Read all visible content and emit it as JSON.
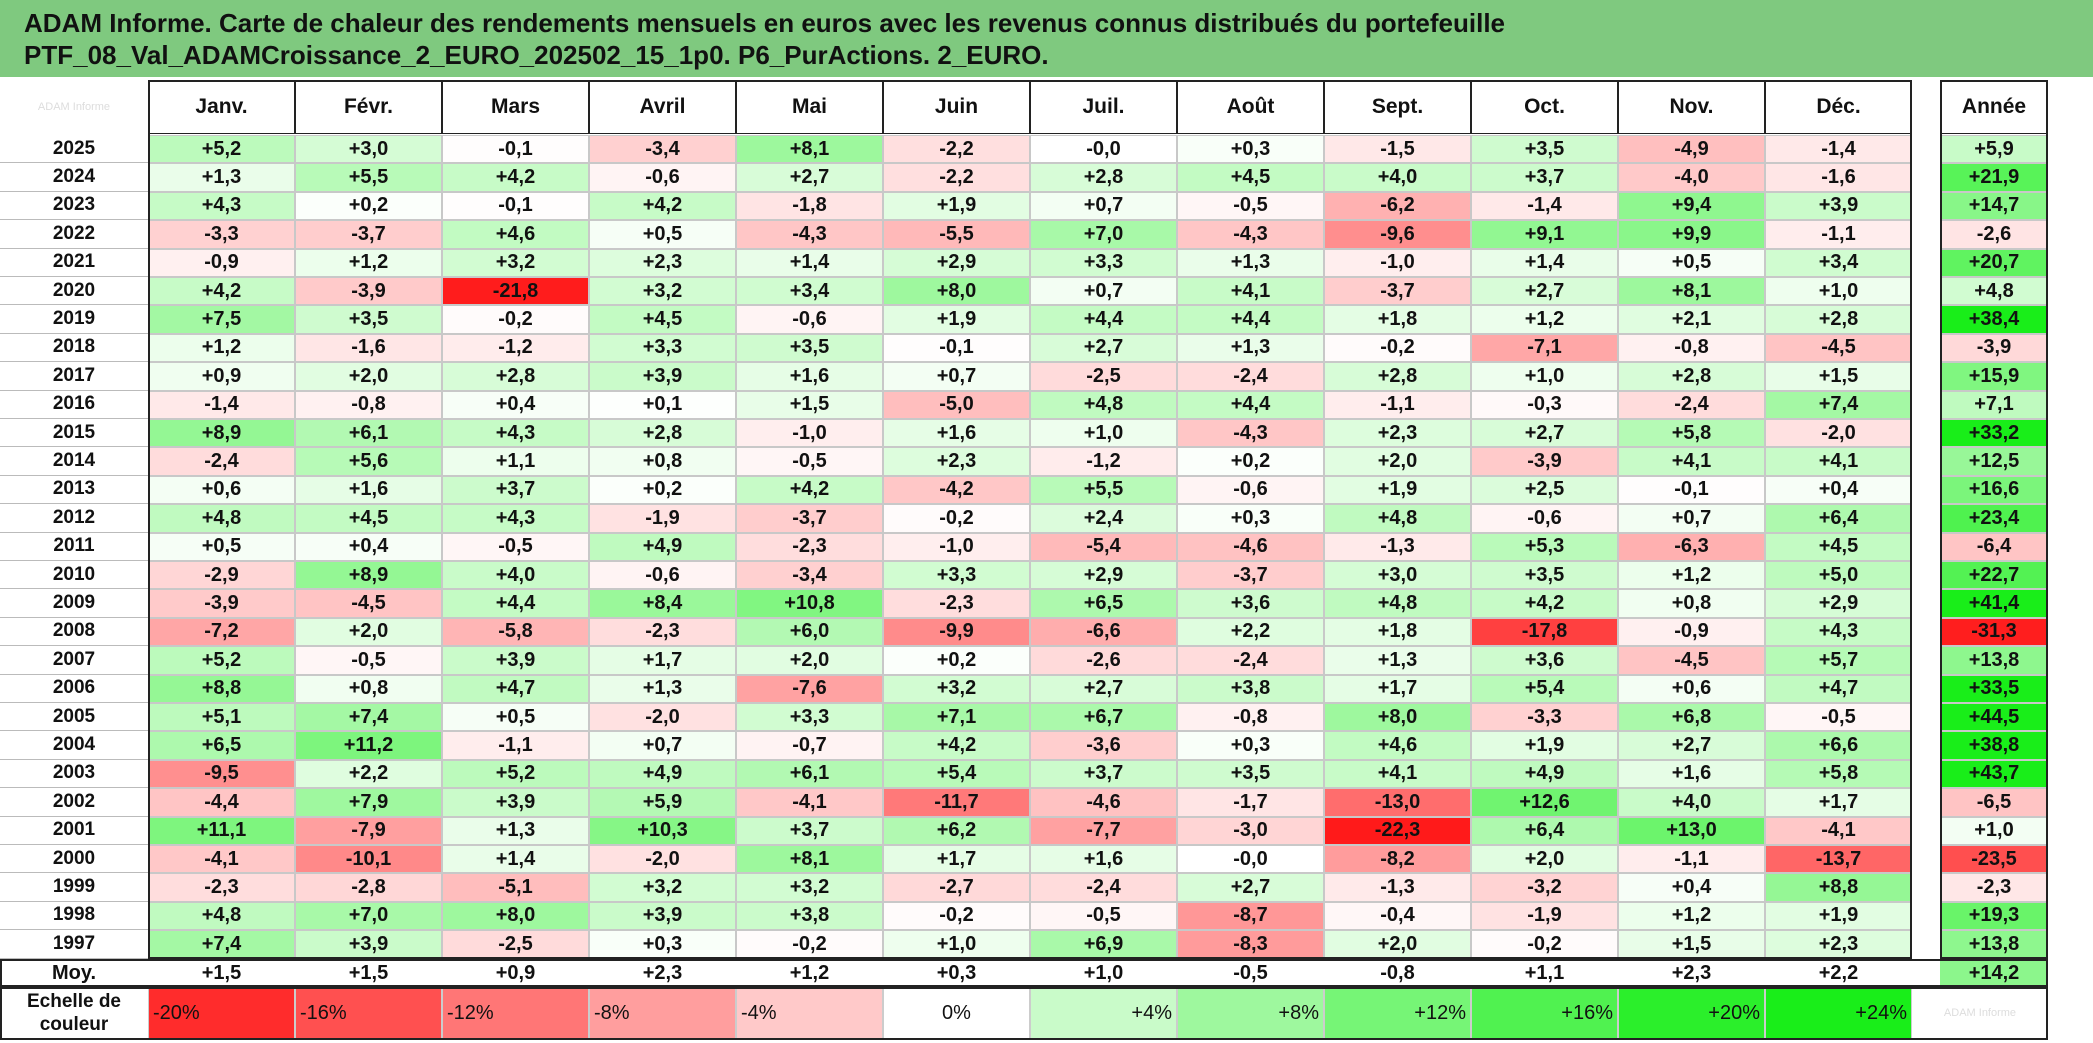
{
  "title": {
    "line1": "ADAM Informe. Carte de chaleur des rendements mensuels en euros avec les revenus connus distribués du portefeuille",
    "line2": "PTF_08_Val_ADAMCroissance_2_EURO_202502_15_1p0. P6_PurActions. 2_EURO."
  },
  "corner_label": "ADAM Informe",
  "months": [
    "Janv.",
    "Févr.",
    "Mars",
    "Avril",
    "Mai",
    "Juin",
    "Juil.",
    "Août",
    "Sept.",
    "Oct.",
    "Nov.",
    "Déc."
  ],
  "year_header": "Année",
  "average_label": "Moy.",
  "legend_label": "Echelle de couleur",
  "legend_steps": [
    "-20%",
    "-16%",
    "-12%",
    "-8%",
    "-4%",
    "0%",
    "+4%",
    "+8%",
    "+12%",
    "+16%",
    "+20%",
    "+24%"
  ],
  "legend_steps_values": [
    -20,
    -16,
    -12,
    -8,
    -4,
    0,
    4,
    8,
    12,
    16,
    20,
    24
  ],
  "legend_trailing_label": "ADAM Informe",
  "colors": {
    "title_bg": "#7fc97f",
    "max_red": "#ff1a1a",
    "max_green": "#19ee19",
    "neutral": "#ffffff"
  },
  "chart_data": {
    "type": "heatmap",
    "title": "Carte de chaleur des rendements mensuels en euros",
    "columns": [
      "Janv.",
      "Févr.",
      "Mars",
      "Avril",
      "Mai",
      "Juin",
      "Juil.",
      "Août",
      "Sept.",
      "Oct.",
      "Nov.",
      "Déc."
    ],
    "rows": [
      {
        "year": "2025",
        "values": [
          "+5,2",
          "+3,0",
          "-0,1",
          "-3,4",
          "+8,1",
          "-2,2",
          "-0,0",
          "+0,3",
          "-1,5",
          "+3,5",
          "-4,9",
          "-1,4"
        ],
        "annual": "+5,9"
      },
      {
        "year": "2024",
        "values": [
          "+1,3",
          "+5,5",
          "+4,2",
          "-0,6",
          "+2,7",
          "-2,2",
          "+2,8",
          "+4,5",
          "+4,0",
          "+3,7",
          "-4,0",
          "-1,6"
        ],
        "annual": "+21,9"
      },
      {
        "year": "2023",
        "values": [
          "+4,3",
          "+0,2",
          "-0,1",
          "+4,2",
          "-1,8",
          "+1,9",
          "+0,7",
          "-0,5",
          "-6,2",
          "-1,4",
          "+9,4",
          "+3,9"
        ],
        "annual": "+14,7"
      },
      {
        "year": "2022",
        "values": [
          "-3,3",
          "-3,7",
          "+4,6",
          "+0,5",
          "-4,3",
          "-5,5",
          "+7,0",
          "-4,3",
          "-9,6",
          "+9,1",
          "+9,9",
          "-1,1"
        ],
        "annual": "-2,6"
      },
      {
        "year": "2021",
        "values": [
          "-0,9",
          "+1,2",
          "+3,2",
          "+2,3",
          "+1,4",
          "+2,9",
          "+3,3",
          "+1,3",
          "-1,0",
          "+1,4",
          "+0,5",
          "+3,4"
        ],
        "annual": "+20,7"
      },
      {
        "year": "2020",
        "values": [
          "+4,2",
          "-3,9",
          "-21,8",
          "+3,2",
          "+3,4",
          "+8,0",
          "+0,7",
          "+4,1",
          "-3,7",
          "+2,7",
          "+8,1",
          "+1,0"
        ],
        "annual": "+4,8"
      },
      {
        "year": "2019",
        "values": [
          "+7,5",
          "+3,5",
          "-0,2",
          "+4,5",
          "-0,6",
          "+1,9",
          "+4,4",
          "+4,4",
          "+1,8",
          "+1,2",
          "+2,1",
          "+2,8"
        ],
        "annual": "+38,4"
      },
      {
        "year": "2018",
        "values": [
          "+1,2",
          "-1,6",
          "-1,2",
          "+3,3",
          "+3,5",
          "-0,1",
          "+2,7",
          "+1,3",
          "-0,2",
          "-7,1",
          "-0,8",
          "-4,5"
        ],
        "annual": "-3,9"
      },
      {
        "year": "2017",
        "values": [
          "+0,9",
          "+2,0",
          "+2,8",
          "+3,9",
          "+1,6",
          "+0,7",
          "-2,5",
          "-2,4",
          "+2,8",
          "+1,0",
          "+2,8",
          "+1,5"
        ],
        "annual": "+15,9"
      },
      {
        "year": "2016",
        "values": [
          "-1,4",
          "-0,8",
          "+0,4",
          "+0,1",
          "+1,5",
          "-5,0",
          "+4,8",
          "+4,4",
          "-1,1",
          "-0,3",
          "-2,4",
          "+7,4"
        ],
        "annual": "+7,1"
      },
      {
        "year": "2015",
        "values": [
          "+8,9",
          "+6,1",
          "+4,3",
          "+2,8",
          "-1,0",
          "+1,6",
          "+1,0",
          "-4,3",
          "+2,3",
          "+2,7",
          "+5,8",
          "-2,0"
        ],
        "annual": "+33,2"
      },
      {
        "year": "2014",
        "values": [
          "-2,4",
          "+5,6",
          "+1,1",
          "+0,8",
          "-0,5",
          "+2,3",
          "-1,2",
          "+0,2",
          "+2,0",
          "-3,9",
          "+4,1",
          "+4,1"
        ],
        "annual": "+12,5"
      },
      {
        "year": "2013",
        "values": [
          "+0,6",
          "+1,6",
          "+3,7",
          "+0,2",
          "+4,2",
          "-4,2",
          "+5,5",
          "-0,6",
          "+1,9",
          "+2,5",
          "-0,1",
          "+0,4"
        ],
        "annual": "+16,6"
      },
      {
        "year": "2012",
        "values": [
          "+4,8",
          "+4,5",
          "+4,3",
          "-1,9",
          "-3,7",
          "-0,2",
          "+2,4",
          "+0,3",
          "+4,8",
          "-0,6",
          "+0,7",
          "+6,4"
        ],
        "annual": "+23,4"
      },
      {
        "year": "2011",
        "values": [
          "+0,5",
          "+0,4",
          "-0,5",
          "+4,9",
          "-2,3",
          "-1,0",
          "-5,4",
          "-4,6",
          "-1,3",
          "+5,3",
          "-6,3",
          "+4,5"
        ],
        "annual": "-6,4"
      },
      {
        "year": "2010",
        "values": [
          "-2,9",
          "+8,9",
          "+4,0",
          "-0,6",
          "-3,4",
          "+3,3",
          "+2,9",
          "-3,7",
          "+3,0",
          "+3,5",
          "+1,2",
          "+5,0"
        ],
        "annual": "+22,7"
      },
      {
        "year": "2009",
        "values": [
          "-3,9",
          "-4,5",
          "+4,4",
          "+8,4",
          "+10,8",
          "-2,3",
          "+6,5",
          "+3,6",
          "+4,8",
          "+4,2",
          "+0,8",
          "+2,9"
        ],
        "annual": "+41,4"
      },
      {
        "year": "2008",
        "values": [
          "-7,2",
          "+2,0",
          "-5,8",
          "-2,3",
          "+6,0",
          "-9,9",
          "-6,6",
          "+2,2",
          "+1,8",
          "-17,8",
          "-0,9",
          "+4,3"
        ],
        "annual": "-31,3"
      },
      {
        "year": "2007",
        "values": [
          "+5,2",
          "-0,5",
          "+3,9",
          "+1,7",
          "+2,0",
          "+0,2",
          "-2,6",
          "-2,4",
          "+1,3",
          "+3,6",
          "-4,5",
          "+5,7"
        ],
        "annual": "+13,8"
      },
      {
        "year": "2006",
        "values": [
          "+8,8",
          "+0,8",
          "+4,7",
          "+1,3",
          "-7,6",
          "+3,2",
          "+2,7",
          "+3,8",
          "+1,7",
          "+5,4",
          "+0,6",
          "+4,7"
        ],
        "annual": "+33,5"
      },
      {
        "year": "2005",
        "values": [
          "+5,1",
          "+7,4",
          "+0,5",
          "-2,0",
          "+3,3",
          "+7,1",
          "+6,7",
          "-0,8",
          "+8,0",
          "-3,3",
          "+6,8",
          "-0,5"
        ],
        "annual": "+44,5"
      },
      {
        "year": "2004",
        "values": [
          "+6,5",
          "+11,2",
          "-1,1",
          "+0,7",
          "-0,7",
          "+4,2",
          "-3,6",
          "+0,3",
          "+4,6",
          "+1,9",
          "+2,7",
          "+6,6"
        ],
        "annual": "+38,8"
      },
      {
        "year": "2003",
        "values": [
          "-9,5",
          "+2,2",
          "+5,2",
          "+4,9",
          "+6,1",
          "+5,4",
          "+3,7",
          "+3,5",
          "+4,1",
          "+4,9",
          "+1,6",
          "+5,8"
        ],
        "annual": "+43,7"
      },
      {
        "year": "2002",
        "values": [
          "-4,4",
          "+7,9",
          "+3,9",
          "+5,9",
          "-4,1",
          "-11,7",
          "-4,6",
          "-1,7",
          "-13,0",
          "+12,6",
          "+4,0",
          "+1,7"
        ],
        "annual": "-6,5"
      },
      {
        "year": "2001",
        "values": [
          "+11,1",
          "-7,9",
          "+1,3",
          "+10,3",
          "+3,7",
          "+6,2",
          "-7,7",
          "-3,0",
          "-22,3",
          "+6,4",
          "+13,0",
          "-4,1"
        ],
        "annual": "+1,0"
      },
      {
        "year": "2000",
        "values": [
          "-4,1",
          "-10,1",
          "+1,4",
          "-2,0",
          "+8,1",
          "+1,7",
          "+1,6",
          "-0,0",
          "-8,2",
          "+2,0",
          "-1,1",
          "-13,7"
        ],
        "annual": "-23,5"
      },
      {
        "year": "1999",
        "values": [
          "-2,3",
          "-2,8",
          "-5,1",
          "+3,2",
          "+3,2",
          "-2,7",
          "-2,4",
          "+2,7",
          "-1,3",
          "-3,2",
          "+0,4",
          "+8,8"
        ],
        "annual": "-2,3"
      },
      {
        "year": "1998",
        "values": [
          "+4,8",
          "+7,0",
          "+8,0",
          "+3,9",
          "+3,8",
          "-0,2",
          "-0,5",
          "-8,7",
          "-0,4",
          "-1,9",
          "+1,2",
          "+1,9"
        ],
        "annual": "+19,3"
      },
      {
        "year": "1997",
        "values": [
          "+7,4",
          "+3,9",
          "-2,5",
          "+0,3",
          "-0,2",
          "+1,0",
          "+6,9",
          "-8,3",
          "+2,0",
          "-0,2",
          "+1,5",
          "+2,3"
        ],
        "annual": "+13,8"
      }
    ],
    "averages": [
      "+1,5",
      "+1,5",
      "+0,9",
      "+2,3",
      "+1,2",
      "+0,3",
      "+1,0",
      "-0,5",
      "-0,8",
      "+1,1",
      "+2,3",
      "+2,2"
    ],
    "average_annual": "+14,2"
  }
}
